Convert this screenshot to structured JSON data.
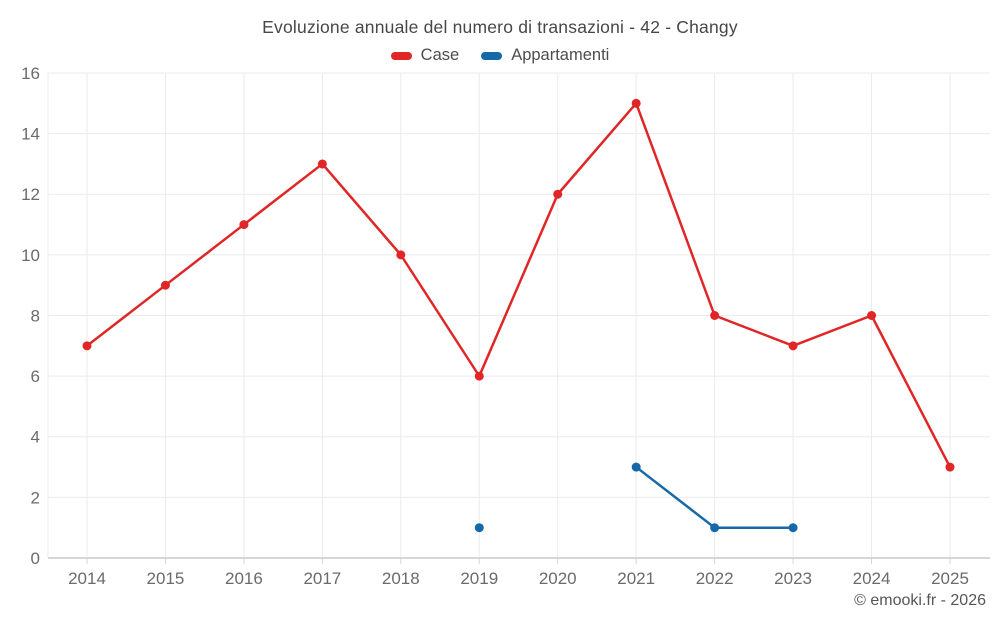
{
  "title": "Evoluzione annuale del numero di transazioni - 42 - Changy",
  "copyright": "© emooki.fr - 2026",
  "chart_data": {
    "type": "line",
    "title": "Evoluzione annuale del numero di transazioni - 42 - Changy",
    "categories": [
      "2014",
      "2015",
      "2016",
      "2017",
      "2018",
      "2019",
      "2020",
      "2021",
      "2022",
      "2023",
      "2024",
      "2025"
    ],
    "series": [
      {
        "name": "Case",
        "color": "#e02626",
        "values": [
          7,
          9,
          11,
          13,
          10,
          6,
          12,
          15,
          8,
          7,
          8,
          3
        ]
      },
      {
        "name": "Appartamenti",
        "color": "#1569a8",
        "values": [
          null,
          null,
          null,
          null,
          null,
          1,
          null,
          3,
          1,
          1,
          null,
          null
        ]
      }
    ],
    "ylim": [
      0,
      16
    ],
    "yticks": [
      0,
      2,
      4,
      6,
      8,
      10,
      12,
      14,
      16
    ],
    "grid": true,
    "legend_position": "top",
    "marker": "circle",
    "marker_radius": 4.5,
    "line_width": 2.5
  },
  "colors": {
    "grid": "#ebebeb",
    "axis": "#c9c9c9",
    "tick_label": "#6b6b6b",
    "title_text": "#474747",
    "legend_text": "#4d4d4d",
    "copyright_text": "#565656"
  }
}
